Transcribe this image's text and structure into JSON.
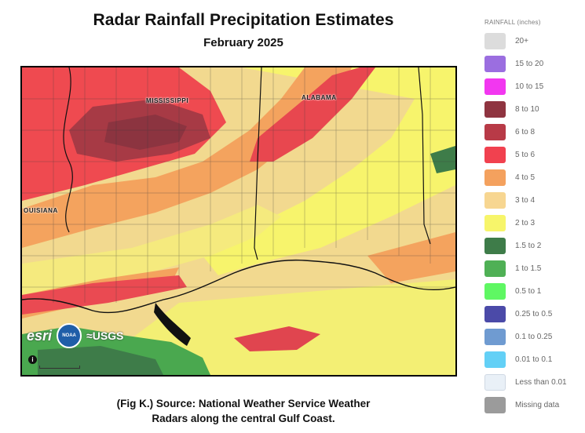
{
  "title": "Radar Rainfall Precipitation Estimates",
  "subtitle": "February 2025",
  "caption_line1": "(Fig K.) Source: National Weather Service Weather",
  "caption_line2": "Radars along the central Gulf Coast.",
  "map": {
    "state_labels": [
      "MISSISSIPPI",
      "ALABAMA",
      "OUISIANA"
    ],
    "logos": {
      "esri": "esri",
      "noaa": "NOAA",
      "usgs": "≈USGS"
    },
    "info_icon": "info-icon"
  },
  "legend": {
    "title": "RAINFALL (inches)",
    "items": [
      {
        "label": "20+",
        "color": "#dcdcdc"
      },
      {
        "label": "15 to 20",
        "color": "#9b6ee0"
      },
      {
        "label": "10 to 15",
        "color": "#f237f0"
      },
      {
        "label": "8 to 10",
        "color": "#8f3440"
      },
      {
        "label": "6 to 8",
        "color": "#b83a47"
      },
      {
        "label": "5 to 6",
        "color": "#f1414f"
      },
      {
        "label": "4 to 5",
        "color": "#f4a15e"
      },
      {
        "label": "3 to 4",
        "color": "#f7d691"
      },
      {
        "label": "2 to 3",
        "color": "#f7f56a"
      },
      {
        "label": "1.5 to 2",
        "color": "#3e7c49"
      },
      {
        "label": "1 to 1.5",
        "color": "#4fb055"
      },
      {
        "label": "0.5 to 1",
        "color": "#5ff763"
      },
      {
        "label": "0.25 to 0.5",
        "color": "#4b4aa8"
      },
      {
        "label": "0.1 to 0.25",
        "color": "#6f9bd1"
      },
      {
        "label": "0.01 to 0.1",
        "color": "#63d0f6"
      },
      {
        "label": "Less than 0.01",
        "color": "#e9f0f7"
      },
      {
        "label": "Missing data",
        "color": "#9b9b9b"
      }
    ]
  }
}
